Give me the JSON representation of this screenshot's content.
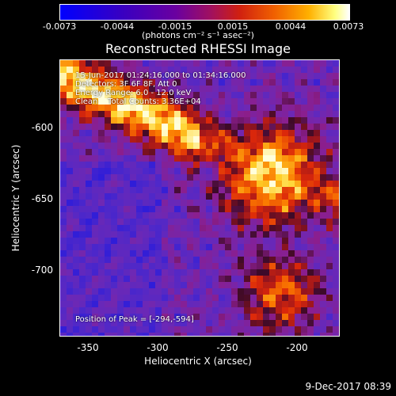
{
  "colorbar": {
    "ticks": [
      "-0.0073",
      "-0.0044",
      "-0.0015",
      "0.0015",
      "0.0044",
      "0.0073"
    ],
    "unit": "(photons cm⁻² s⁻¹ asec⁻²)"
  },
  "title": "Reconstructed RHESSI Image",
  "annotations": {
    "time_range": "15-Jun-2017 01:24:16.000 to 01:34:16.000",
    "detectors": "Detectors: 3F 6F 8F, Att 0",
    "energy_range": "Energy Range: 6.0 - 12.0 keV",
    "clean": "Clean    Total Counts: 3.36E+04",
    "peak": "Position of Peak = [-294,-594]"
  },
  "axes": {
    "xlabel": "Heliocentric X (arcsec)",
    "ylabel": "Heliocentric Y (arcsec)",
    "xticks": [
      "-350",
      "-300",
      "-250",
      "-200"
    ],
    "yticks": [
      "-600",
      "-650",
      "-700"
    ]
  },
  "timestamp": "9-Dec-2017 08:39"
}
